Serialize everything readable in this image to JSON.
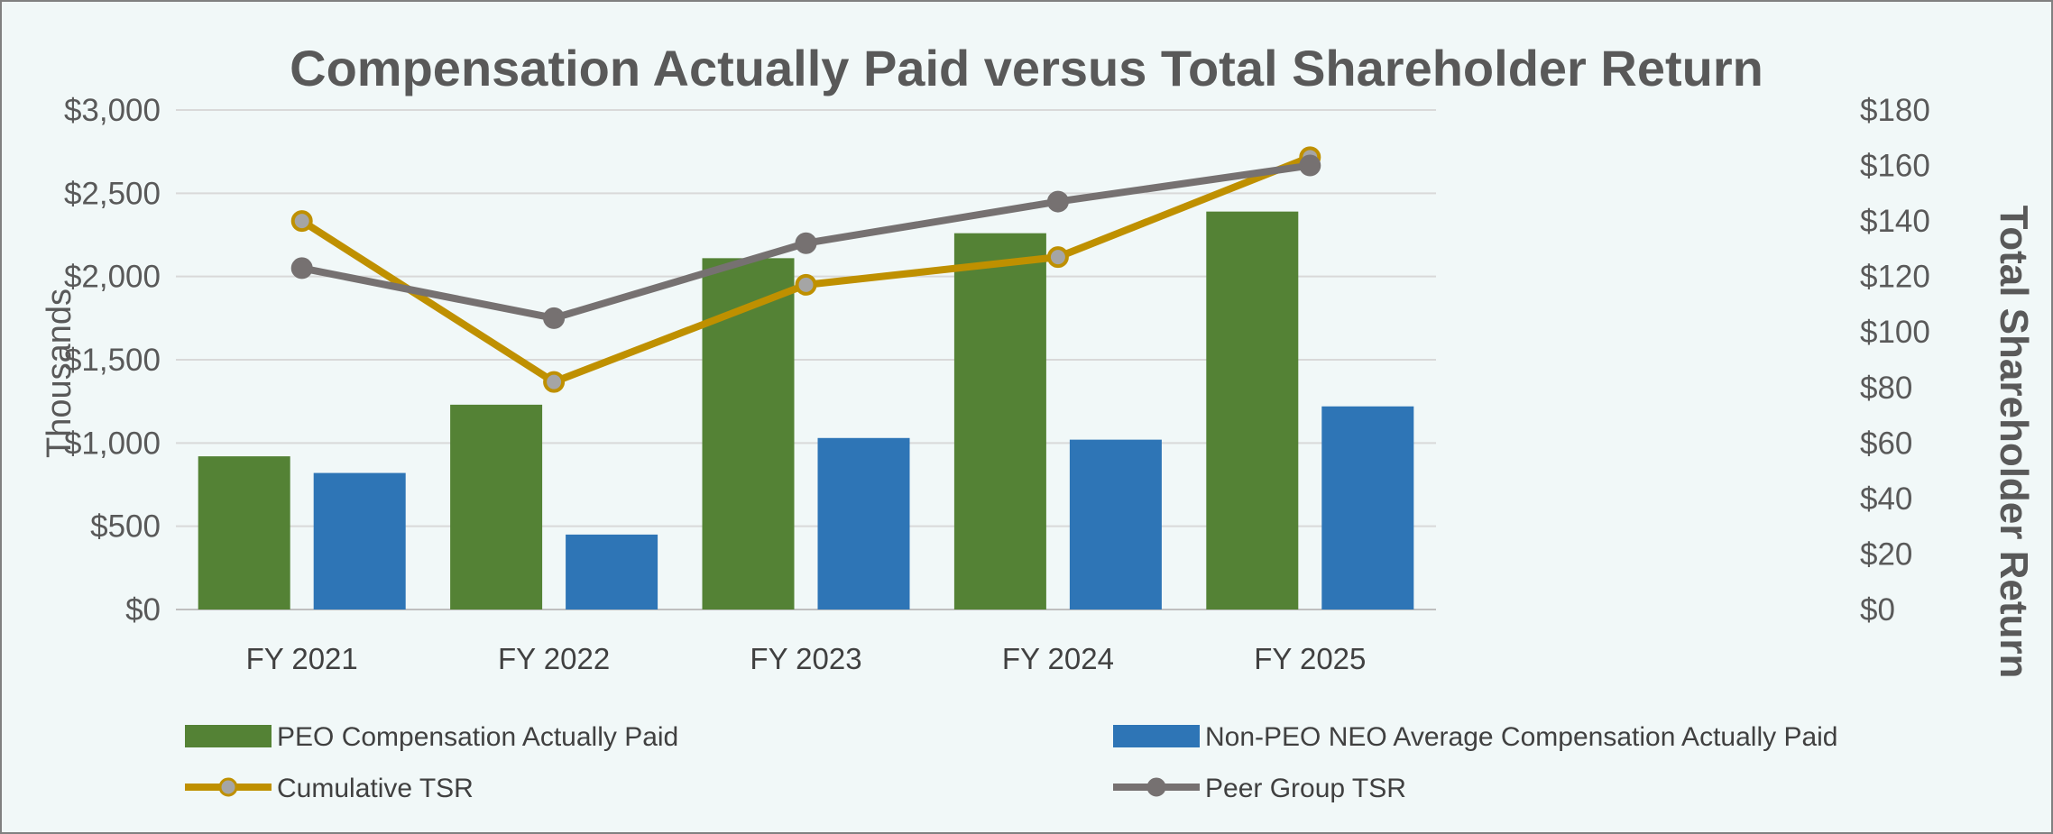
{
  "chart_data": {
    "type": "bar",
    "title": "Compensation Actually Paid versus Total Shareholder Return",
    "categories": [
      "FY 2021",
      "FY 2022",
      "FY 2023",
      "FY 2024",
      "FY 2025"
    ],
    "ylabel": "Thousands",
    "y2label": "Total Shareholder Return",
    "ylim": [
      0,
      3000
    ],
    "y2lim": [
      0,
      180
    ],
    "yticks": [
      "$0",
      "$500",
      "$1,000",
      "$1,500",
      "$2,000",
      "$2,500",
      "$3,000"
    ],
    "y2ticks": [
      "$0",
      "$20",
      "$40",
      "$60",
      "$80",
      "$100",
      "$120",
      "$140",
      "$160",
      "$180"
    ],
    "grid": true,
    "legend_position": "bottom",
    "series": [
      {
        "name": "PEO Compensation Actually Paid",
        "kind": "bar",
        "axis": "left",
        "color": "#548235",
        "values": [
          920,
          1230,
          2110,
          2260,
          2390
        ]
      },
      {
        "name": "Non-PEO NEO Average Compensation Actually Paid",
        "kind": "bar",
        "axis": "left",
        "color": "#2E75B6",
        "values": [
          820,
          450,
          1030,
          1020,
          1220
        ]
      },
      {
        "name": "Cumulative TSR",
        "kind": "line",
        "axis": "right",
        "color": "#BF9000",
        "values": [
          140,
          82,
          117,
          127,
          163
        ]
      },
      {
        "name": "Peer Group TSR",
        "kind": "line",
        "axis": "right",
        "color": "#767171",
        "values": [
          123,
          105,
          132,
          147,
          160
        ]
      }
    ]
  },
  "colors": {
    "plot_background": "#F1F8F8",
    "frame": "#808080",
    "gridline": "#D9D9D9",
    "marker_fill": "#A5A5A5"
  }
}
